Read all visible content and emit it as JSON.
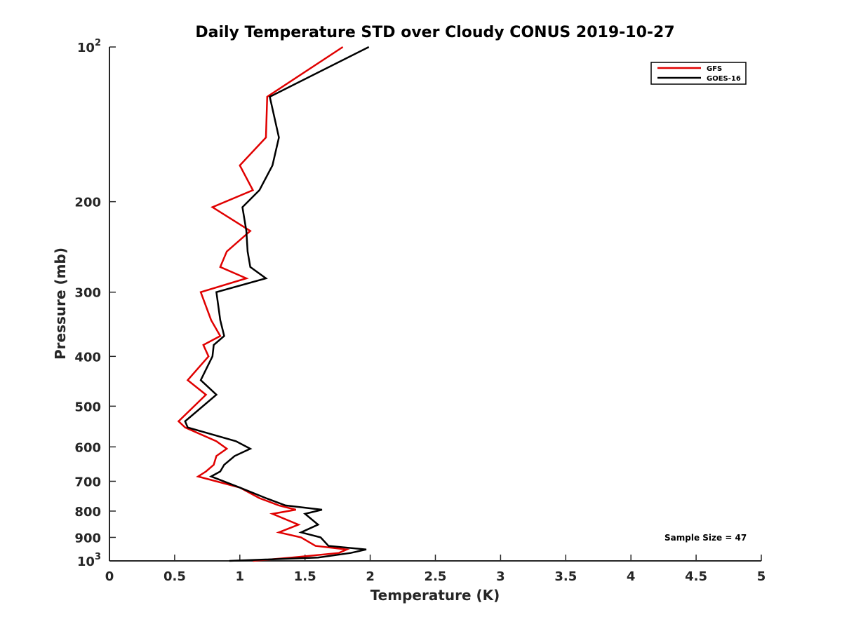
{
  "chart_data": {
    "type": "line",
    "title": "Daily Temperature STD over Cloudy CONUS 2019-10-27",
    "xlabel": "Temperature (K)",
    "ylabel": "Pressure (mb)",
    "xlim": [
      0,
      5
    ],
    "ylim": [
      100,
      1000
    ],
    "y_scale": "log",
    "y_reversed": true,
    "grid": false,
    "legend_position": "top-right",
    "x_ticks": [
      "0",
      "0.5",
      "1",
      "1.5",
      "2",
      "2.5",
      "3",
      "3.5",
      "4",
      "4.5",
      "5"
    ],
    "x_tick_values": [
      0,
      0.5,
      1,
      1.5,
      2,
      2.5,
      3,
      3.5,
      4,
      4.5,
      5
    ],
    "y_ticks": [
      {
        "value": 100,
        "base": "10",
        "exp": "2"
      },
      {
        "value": 200,
        "label": "200"
      },
      {
        "value": 300,
        "label": "300"
      },
      {
        "value": 400,
        "label": "400"
      },
      {
        "value": 500,
        "label": "500"
      },
      {
        "value": 600,
        "label": "600"
      },
      {
        "value": 700,
        "label": "700"
      },
      {
        "value": 800,
        "label": "800"
      },
      {
        "value": 900,
        "label": "900"
      },
      {
        "value": 1000,
        "base": "10",
        "exp": "3"
      }
    ],
    "annotation": "Sample Size = 47",
    "series": [
      {
        "name": "GFS",
        "color": "#e00000",
        "points": [
          [
            1.79,
            100
          ],
          [
            1.21,
            125
          ],
          [
            1.2,
            150
          ],
          [
            1.0,
            170
          ],
          [
            1.1,
            190
          ],
          [
            0.79,
            205
          ],
          [
            1.08,
            228
          ],
          [
            0.9,
            250
          ],
          [
            0.85,
            268
          ],
          [
            1.05,
            282
          ],
          [
            0.7,
            300
          ],
          [
            0.78,
            340
          ],
          [
            0.85,
            365
          ],
          [
            0.72,
            380
          ],
          [
            0.76,
            400
          ],
          [
            0.6,
            445
          ],
          [
            0.74,
            475
          ],
          [
            0.53,
            535
          ],
          [
            0.58,
            550
          ],
          [
            0.82,
            585
          ],
          [
            0.9,
            605
          ],
          [
            0.82,
            625
          ],
          [
            0.8,
            650
          ],
          [
            0.74,
            670
          ],
          [
            0.68,
            685
          ],
          [
            1.0,
            720
          ],
          [
            1.15,
            755
          ],
          [
            1.3,
            780
          ],
          [
            1.43,
            795
          ],
          [
            1.25,
            810
          ],
          [
            1.45,
            850
          ],
          [
            1.3,
            880
          ],
          [
            1.47,
            900
          ],
          [
            1.58,
            935
          ],
          [
            1.82,
            950
          ],
          [
            1.76,
            965
          ],
          [
            1.4,
            985
          ],
          [
            1.1,
            1000
          ]
        ]
      },
      {
        "name": "GOES-16",
        "color": "#000000",
        "points": [
          [
            1.99,
            100
          ],
          [
            1.23,
            125
          ],
          [
            1.3,
            150
          ],
          [
            1.25,
            170
          ],
          [
            1.15,
            190
          ],
          [
            1.02,
            205
          ],
          [
            1.05,
            228
          ],
          [
            1.06,
            250
          ],
          [
            1.08,
            268
          ],
          [
            1.2,
            282
          ],
          [
            0.82,
            300
          ],
          [
            0.85,
            340
          ],
          [
            0.88,
            365
          ],
          [
            0.8,
            380
          ],
          [
            0.79,
            400
          ],
          [
            0.7,
            445
          ],
          [
            0.82,
            475
          ],
          [
            0.58,
            535
          ],
          [
            0.6,
            550
          ],
          [
            0.97,
            585
          ],
          [
            1.08,
            605
          ],
          [
            0.96,
            625
          ],
          [
            0.88,
            650
          ],
          [
            0.85,
            670
          ],
          [
            0.78,
            685
          ],
          [
            1.0,
            720
          ],
          [
            1.2,
            755
          ],
          [
            1.35,
            780
          ],
          [
            1.63,
            795
          ],
          [
            1.5,
            810
          ],
          [
            1.6,
            850
          ],
          [
            1.47,
            880
          ],
          [
            1.62,
            900
          ],
          [
            1.68,
            935
          ],
          [
            1.97,
            950
          ],
          [
            1.85,
            965
          ],
          [
            1.6,
            985
          ],
          [
            0.92,
            1000
          ]
        ]
      }
    ]
  }
}
